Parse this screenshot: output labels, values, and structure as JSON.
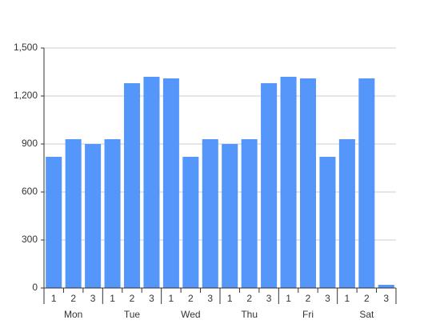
{
  "chart_data": {
    "type": "bar",
    "categories": [
      "1",
      "2",
      "3",
      "1",
      "2",
      "3",
      "1",
      "2",
      "3",
      "1",
      "2",
      "3",
      "1",
      "2",
      "3",
      "1",
      "2",
      "3"
    ],
    "groups": [
      "Mon",
      "Tue",
      "Wed",
      "Thu",
      "Fri",
      "Sat"
    ],
    "values": [
      820,
      930,
      900,
      930,
      1280,
      1320,
      1310,
      820,
      930,
      900,
      930,
      1280,
      1320,
      1310,
      820,
      930,
      1310,
      20
    ],
    "color": "#5596fa",
    "ylim": [
      0,
      1500
    ],
    "yticks": [
      0,
      300,
      600,
      900,
      {
        "value": 1200,
        "label": "1,200"
      },
      {
        "value": 1500,
        "label": "1,500"
      }
    ],
    "grid": true
  }
}
